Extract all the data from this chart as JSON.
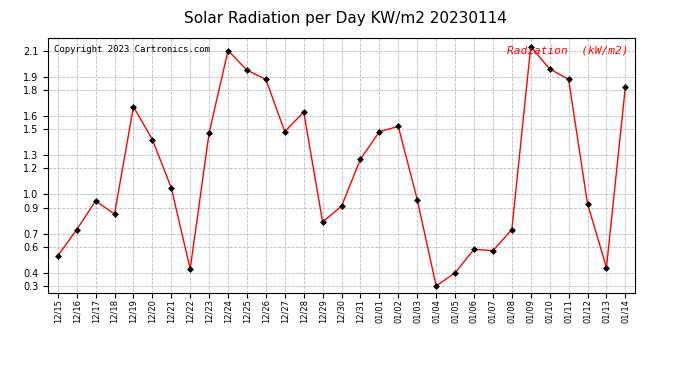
{
  "title": "Solar Radiation per Day KW/m2 20230114",
  "copyright": "Copyright 2023 Cartronics.com",
  "legend_label": "Radiation  (kW/m2)",
  "background_color": "#ffffff",
  "plot_bg_color": "#ffffff",
  "grid_color": "#bbbbbb",
  "line_color": "#ff0000",
  "marker_color": "#000000",
  "legend_color": "#ff0000",
  "ylim": [
    0.25,
    2.2
  ],
  "yticks": [
    0.3,
    0.4,
    0.6,
    0.7,
    0.9,
    1.0,
    1.2,
    1.3,
    1.5,
    1.6,
    1.8,
    1.9,
    2.1
  ],
  "dates": [
    "12/15",
    "12/16",
    "12/17",
    "12/18",
    "12/19",
    "12/20",
    "12/21",
    "12/22",
    "12/23",
    "12/24",
    "12/25",
    "12/26",
    "12/27",
    "12/28",
    "12/29",
    "12/30",
    "12/31",
    "01/01",
    "01/02",
    "01/03",
    "01/04",
    "01/05",
    "01/06",
    "01/07",
    "01/08",
    "01/09",
    "01/10",
    "01/11",
    "01/12",
    "01/13",
    "01/14"
  ],
  "values": [
    0.53,
    0.73,
    0.95,
    0.85,
    1.67,
    1.42,
    1.05,
    0.43,
    1.47,
    2.1,
    1.95,
    1.88,
    1.48,
    1.63,
    0.79,
    0.91,
    1.27,
    1.48,
    1.52,
    0.96,
    0.3,
    0.4,
    0.58,
    0.57,
    0.73,
    2.13,
    1.96,
    1.88,
    0.93,
    0.44,
    1.82
  ],
  "title_fontsize": 11,
  "copyright_fontsize": 6.5,
  "legend_fontsize": 8,
  "ytick_fontsize": 7,
  "xtick_fontsize": 6
}
